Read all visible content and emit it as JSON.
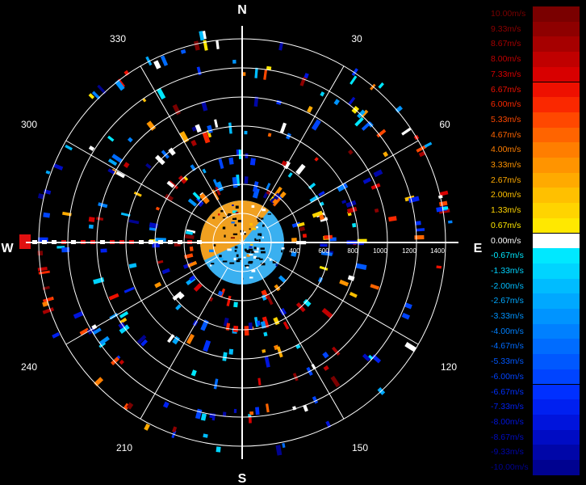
{
  "radar": {
    "compass": {
      "north": "N",
      "south": "S",
      "east": "E",
      "west": "W"
    },
    "bearings": [
      "30",
      "60",
      "120",
      "150",
      "210",
      "240",
      "300",
      "330"
    ],
    "range_ticks": [
      "400",
      "600",
      "800",
      "1000",
      "1200",
      "1400"
    ],
    "center_fill_colors": [
      "#f0a020",
      "#3ab0f0"
    ]
  },
  "legend": {
    "entries": [
      {
        "label": "10.00m/s",
        "color": "#7a0000"
      },
      {
        "label": "9.33m/s",
        "color": "#8e0000"
      },
      {
        "label": "8.67m/s",
        "color": "#a60000"
      },
      {
        "label": "8.00m/s",
        "color": "#c00000"
      },
      {
        "label": "7.33m/s",
        "color": "#d80000"
      },
      {
        "label": "6.67m/s",
        "color": "#ee1000"
      },
      {
        "label": "6.00m/s",
        "color": "#fa2800"
      },
      {
        "label": "5.33m/s",
        "color": "#ff4800"
      },
      {
        "label": "4.67m/s",
        "color": "#ff6400"
      },
      {
        "label": "4.00m/s",
        "color": "#ff7e00"
      },
      {
        "label": "3.33m/s",
        "color": "#ff9400"
      },
      {
        "label": "2.67m/s",
        "color": "#ffaa00"
      },
      {
        "label": "2.00m/s",
        "color": "#ffc000"
      },
      {
        "label": "1.33m/s",
        "color": "#ffd400"
      },
      {
        "label": "0.67m/s",
        "color": "#ffe800"
      },
      {
        "label": "0.00m/s",
        "color": "#ffffff"
      },
      {
        "label": "-0.67m/s",
        "color": "#00e8ff"
      },
      {
        "label": "-1.33m/s",
        "color": "#00d4ff"
      },
      {
        "label": "-2.00m/s",
        "color": "#00bcff"
      },
      {
        "label": "-2.67m/s",
        "color": "#00a8ff"
      },
      {
        "label": "-3.33m/s",
        "color": "#0094ff"
      },
      {
        "label": "-4.00m/s",
        "color": "#0080ff"
      },
      {
        "label": "-4.67m/s",
        "color": "#006cff"
      },
      {
        "label": "-5.33m/s",
        "color": "#0058ff"
      },
      {
        "label": "-6.00m/s",
        "color": "#0044ff"
      },
      {
        "label": "-6.67m/s",
        "color": "#0030ff"
      },
      {
        "label": "-7.33m/s",
        "color": "#0020f0"
      },
      {
        "label": "-8.00m/s",
        "color": "#0014dc"
      },
      {
        "label": "-8.67m/s",
        "color": "#000cc4"
      },
      {
        "label": "-9.33m/s",
        "color": "#0006a8"
      },
      {
        "label": "-10.00m/s",
        "color": "#000290"
      }
    ]
  }
}
